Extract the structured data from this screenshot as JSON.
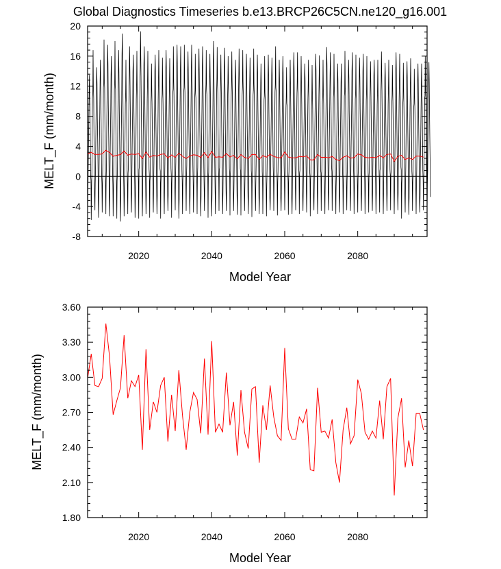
{
  "title": "Global Diagnostics Timeseries b.e13.BRCP26C5CN.ne120_g16.001",
  "chart_data": [
    {
      "type": "line",
      "title": "Global Diagnostics Timeseries b.e13.BRCP26C5CN.ne120_g16.001",
      "xlabel": "Model Year",
      "ylabel": "MELT_F (mm/month)",
      "xlim": [
        2006,
        2099
      ],
      "ylim": [
        -8,
        20
      ],
      "xticks": [
        2020,
        2040,
        2060,
        2080
      ],
      "yticks": [
        -8,
        -4,
        0,
        4,
        8,
        12,
        16,
        20
      ],
      "ytick_labels": [
        "-8",
        "-4",
        "0",
        "4",
        "8",
        "12",
        "16",
        "20"
      ],
      "xtick_labels": [
        "2020",
        "2040",
        "2060",
        "2080"
      ],
      "series": [
        {
          "name": "monthly",
          "color": "#000000",
          "description": "monthly global MELT_F, seasonal cycle; yearly peak and trough values",
          "year_start": 2006,
          "annual_peak": [
            13.5,
            16.8,
            14.5,
            15.5,
            18.2,
            17.5,
            16.0,
            18.0,
            16.8,
            19.0,
            15.5,
            17.3,
            16.2,
            16.7,
            19.3,
            17.3,
            16.7,
            15.0,
            16.2,
            16.8,
            15.8,
            16.8,
            15.7,
            17.3,
            17.5,
            17.3,
            17.5,
            16.6,
            17.5,
            16.3,
            17.0,
            17.3,
            16.8,
            16.3,
            18.0,
            17.2,
            16.2,
            17.1,
            16.0,
            16.6,
            15.5,
            17.0,
            16.8,
            16.3,
            15.8,
            17.0,
            16.2,
            15.0,
            16.0,
            16.2,
            15.8,
            17.3,
            15.5,
            16.0,
            14.5,
            15.5,
            16.5,
            16.5,
            16.0,
            15.0,
            15.5,
            14.8,
            16.3,
            16.1,
            15.5,
            17.2,
            16.5,
            16.3,
            15.0,
            15.0,
            16.7,
            15.5,
            16.5,
            16.2,
            15.8,
            16.3,
            16.0,
            15.3,
            15.5,
            15.5,
            16.6,
            15.1,
            15.5,
            14.8,
            16.5,
            16.3,
            15.1,
            15.3,
            15.7,
            14.3,
            15.0,
            15.0,
            16.0,
            15.2
          ],
          "annual_trough": [
            -5.0,
            -5.8,
            -4.5,
            -5.5,
            -4.8,
            -5.0,
            -5.3,
            -5.3,
            -5.6,
            -6.0,
            -5.3,
            -5.0,
            -4.8,
            -5.5,
            -5.6,
            -5.3,
            -5.0,
            -5.5,
            -4.8,
            -5.0,
            -5.6,
            -5.0,
            -4.6,
            -5.5,
            -4.5,
            -5.6,
            -5.0,
            -4.6,
            -5.0,
            -4.8,
            -5.0,
            -5.3,
            -4.6,
            -5.5,
            -5.3,
            -5.0,
            -4.6,
            -5.0,
            -4.6,
            -5.2,
            -4.6,
            -5.1,
            -5.2,
            -4.6,
            -5.0,
            -5.4,
            -4.6,
            -5.0,
            -5.0,
            -5.3,
            -4.5,
            -4.6,
            -5.2,
            -4.6,
            -4.5,
            -5.1,
            -5.0,
            -4.5,
            -5.0,
            -4.6,
            -4.8,
            -5.3,
            -4.5,
            -5.0,
            -4.6,
            -5.0,
            -4.5,
            -4.6,
            -5.0,
            -4.8,
            -5.0,
            -4.5,
            -4.6,
            -5.0,
            -4.8,
            -4.6,
            -5.0,
            -4.8,
            -4.6,
            -5.0,
            -4.8,
            -5.0,
            -4.6,
            -4.5,
            -5.0,
            -4.5,
            -5.6,
            -4.8,
            -5.1,
            -4.6,
            -5.0,
            -4.8,
            -4.5,
            -5.0
          ]
        },
        {
          "name": "annual mean",
          "color": "#ff0000",
          "x_start": 2006,
          "values": [
            2.99,
            3.2,
            2.93,
            2.92,
            2.99,
            3.46,
            3.18,
            2.68,
            2.8,
            2.91,
            3.36,
            2.82,
            2.97,
            2.92,
            3.02,
            2.38,
            3.24,
            2.55,
            2.79,
            2.7,
            2.93,
            3.0,
            2.45,
            2.85,
            2.54,
            3.06,
            2.67,
            2.38,
            2.7,
            2.87,
            2.81,
            2.52,
            3.16,
            2.51,
            3.31,
            2.53,
            2.6,
            2.53,
            3.04,
            2.59,
            2.79,
            2.33,
            2.89,
            2.53,
            2.39,
            2.9,
            2.92,
            2.27,
            2.76,
            2.55,
            2.93,
            2.66,
            2.5,
            2.46,
            3.25,
            2.56,
            2.47,
            2.47,
            2.66,
            2.61,
            2.73,
            2.21,
            2.2,
            2.91,
            2.53,
            2.54,
            2.48,
            2.64,
            2.27,
            2.1,
            2.55,
            2.74,
            2.43,
            2.5,
            2.98,
            2.86,
            2.53,
            2.47,
            2.54,
            2.48,
            2.8,
            2.47,
            2.92,
            2.99,
            1.99,
            2.65,
            2.82,
            2.23,
            2.46,
            2.24,
            2.69,
            2.69,
            2.55
          ]
        }
      ]
    },
    {
      "type": "line",
      "xlabel": "Model Year",
      "ylabel": "MELT_F (mm/month)",
      "xlim": [
        2006,
        2099
      ],
      "ylim": [
        1.8,
        3.6
      ],
      "xticks": [
        2020,
        2040,
        2060,
        2080
      ],
      "xtick_labels": [
        "2020",
        "2040",
        "2060",
        "2080"
      ],
      "yticks": [
        1.8,
        2.1,
        2.4,
        2.7,
        3.0,
        3.3,
        3.6
      ],
      "ytick_labels": [
        "1.80",
        "2.10",
        "2.40",
        "2.70",
        "3.00",
        "3.30",
        "3.60"
      ],
      "series": [
        {
          "name": "annual mean",
          "color": "#ff0000",
          "x_start": 2006,
          "values": [
            2.99,
            3.2,
            2.93,
            2.92,
            2.99,
            3.46,
            3.18,
            2.68,
            2.8,
            2.91,
            3.36,
            2.82,
            2.97,
            2.92,
            3.02,
            2.38,
            3.24,
            2.55,
            2.79,
            2.7,
            2.93,
            3.0,
            2.45,
            2.85,
            2.54,
            3.06,
            2.67,
            2.38,
            2.7,
            2.87,
            2.81,
            2.52,
            3.16,
            2.51,
            3.31,
            2.53,
            2.6,
            2.53,
            3.04,
            2.59,
            2.79,
            2.33,
            2.89,
            2.53,
            2.39,
            2.9,
            2.92,
            2.27,
            2.76,
            2.55,
            2.93,
            2.66,
            2.5,
            2.46,
            3.25,
            2.56,
            2.47,
            2.47,
            2.66,
            2.61,
            2.73,
            2.21,
            2.2,
            2.91,
            2.53,
            2.54,
            2.48,
            2.64,
            2.27,
            2.1,
            2.55,
            2.74,
            2.43,
            2.5,
            2.98,
            2.86,
            2.53,
            2.47,
            2.54,
            2.48,
            2.8,
            2.47,
            2.92,
            2.99,
            1.99,
            2.65,
            2.82,
            2.23,
            2.46,
            2.24,
            2.69,
            2.69,
            2.55
          ]
        }
      ]
    }
  ]
}
